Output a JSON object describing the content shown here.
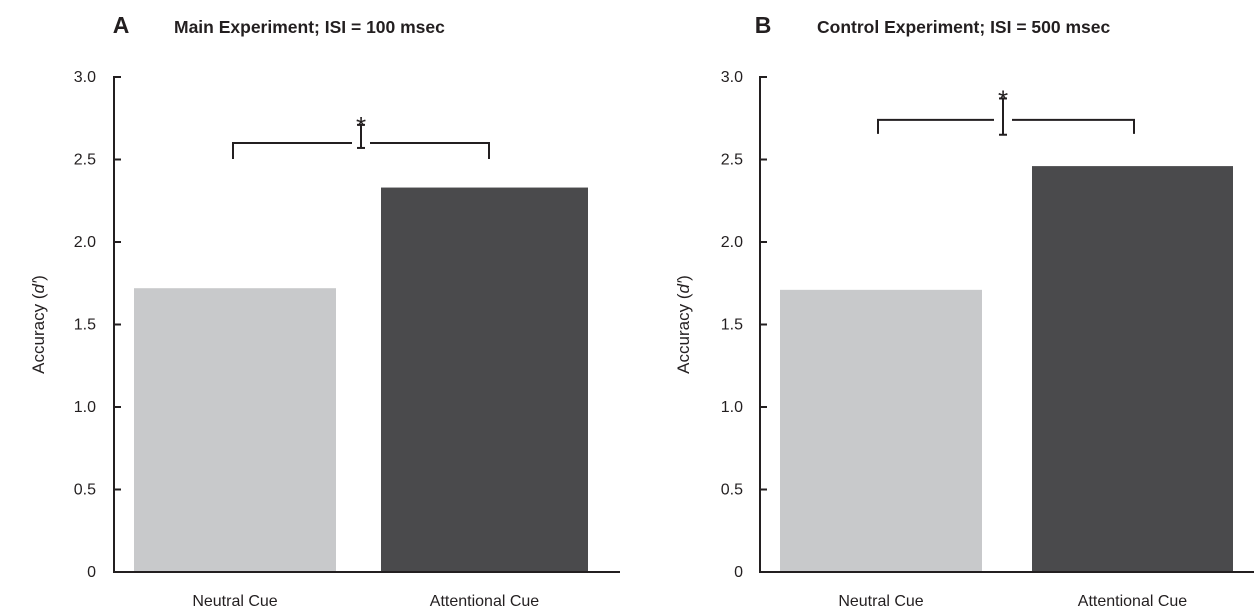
{
  "chart_data": [
    {
      "type": "bar",
      "panel_letter": "A",
      "title": "Main Experiment; ISI = 100 msec",
      "categories": [
        "Neutral Cue",
        "Attentional Cue"
      ],
      "values": [
        1.72,
        2.33
      ],
      "colors": [
        "#c8c9cb",
        "#4a4a4c"
      ],
      "ylabel_prefix": "Accuracy (",
      "ylabel_italic": "d′",
      "ylabel_suffix": ")",
      "ylim": [
        0,
        3.0
      ],
      "yticks": [
        "0",
        "0.5",
        "1.0",
        "1.5",
        "2.0",
        "2.5",
        "3.0"
      ],
      "significance": {
        "marker": "*",
        "bracket_y": 2.6,
        "error_low": 2.57,
        "error_high": 2.71
      },
      "grid": false
    },
    {
      "type": "bar",
      "panel_letter": "B",
      "title": "Control Experiment; ISI = 500 msec",
      "categories": [
        "Neutral Cue",
        "Attentional Cue"
      ],
      "values": [
        1.71,
        2.46
      ],
      "colors": [
        "#c8c9cb",
        "#4a4a4c"
      ],
      "ylabel_prefix": "Accuracy (",
      "ylabel_italic": "d′",
      "ylabel_suffix": ")",
      "ylim": [
        0,
        3.0
      ],
      "yticks": [
        "0",
        "0.5",
        "1.0",
        "1.5",
        "2.0",
        "2.5",
        "3.0"
      ],
      "significance": {
        "marker": "*",
        "bracket_y": 2.74,
        "error_low": 2.65,
        "error_high": 2.87
      },
      "grid": false
    }
  ]
}
